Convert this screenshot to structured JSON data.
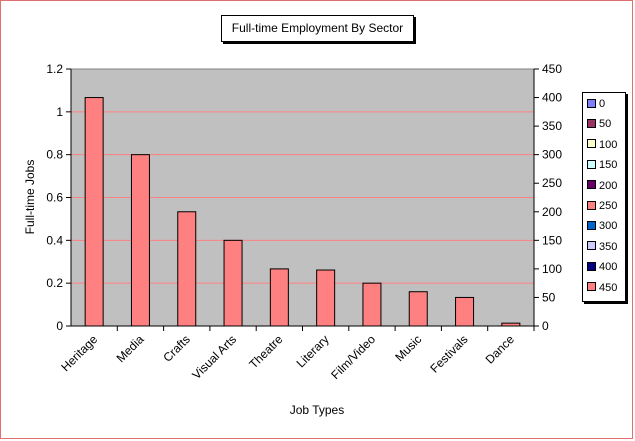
{
  "chart_data": {
    "type": "bar",
    "title": "Full-time Employment By Sector",
    "xlabel": "Job Types",
    "ylabel": "Full-time Jobs",
    "categories": [
      "Heritage",
      "Media",
      "Crafts",
      "Visual Arts",
      "Theatre",
      "Literary",
      "Film/Video",
      "Music",
      "Festivals",
      "Dance"
    ],
    "values": [
      400,
      300,
      200,
      150,
      100,
      98,
      75,
      60,
      50,
      5
    ],
    "left_axis": {
      "ylim": [
        0,
        1.2
      ],
      "ticks": [
        "0",
        "0.2",
        "0.4",
        "0.6",
        "0.8",
        "1",
        "1.2"
      ]
    },
    "right_axis": {
      "ylim": [
        0,
        450
      ],
      "ticks": [
        "0",
        "50",
        "100",
        "150",
        "200",
        "250",
        "300",
        "350",
        "400",
        "450"
      ]
    },
    "grid": true,
    "legend_position": "right",
    "legend": [
      {
        "label": "0",
        "color": "#8080ff"
      },
      {
        "label": "50",
        "color": "#993366"
      },
      {
        "label": "100",
        "color": "#ffffcc"
      },
      {
        "label": "150",
        "color": "#ccffff"
      },
      {
        "label": "200",
        "color": "#660066"
      },
      {
        "label": "250",
        "color": "#ff8080"
      },
      {
        "label": "300",
        "color": "#0066cc"
      },
      {
        "label": "350",
        "color": "#ccccff"
      },
      {
        "label": "400",
        "color": "#000080"
      },
      {
        "label": "450",
        "color": "#ff8080"
      }
    ],
    "colors": {
      "bar": "#ff8080",
      "plot_background": "#c0c0c0",
      "gridline": "#ff8080"
    }
  }
}
